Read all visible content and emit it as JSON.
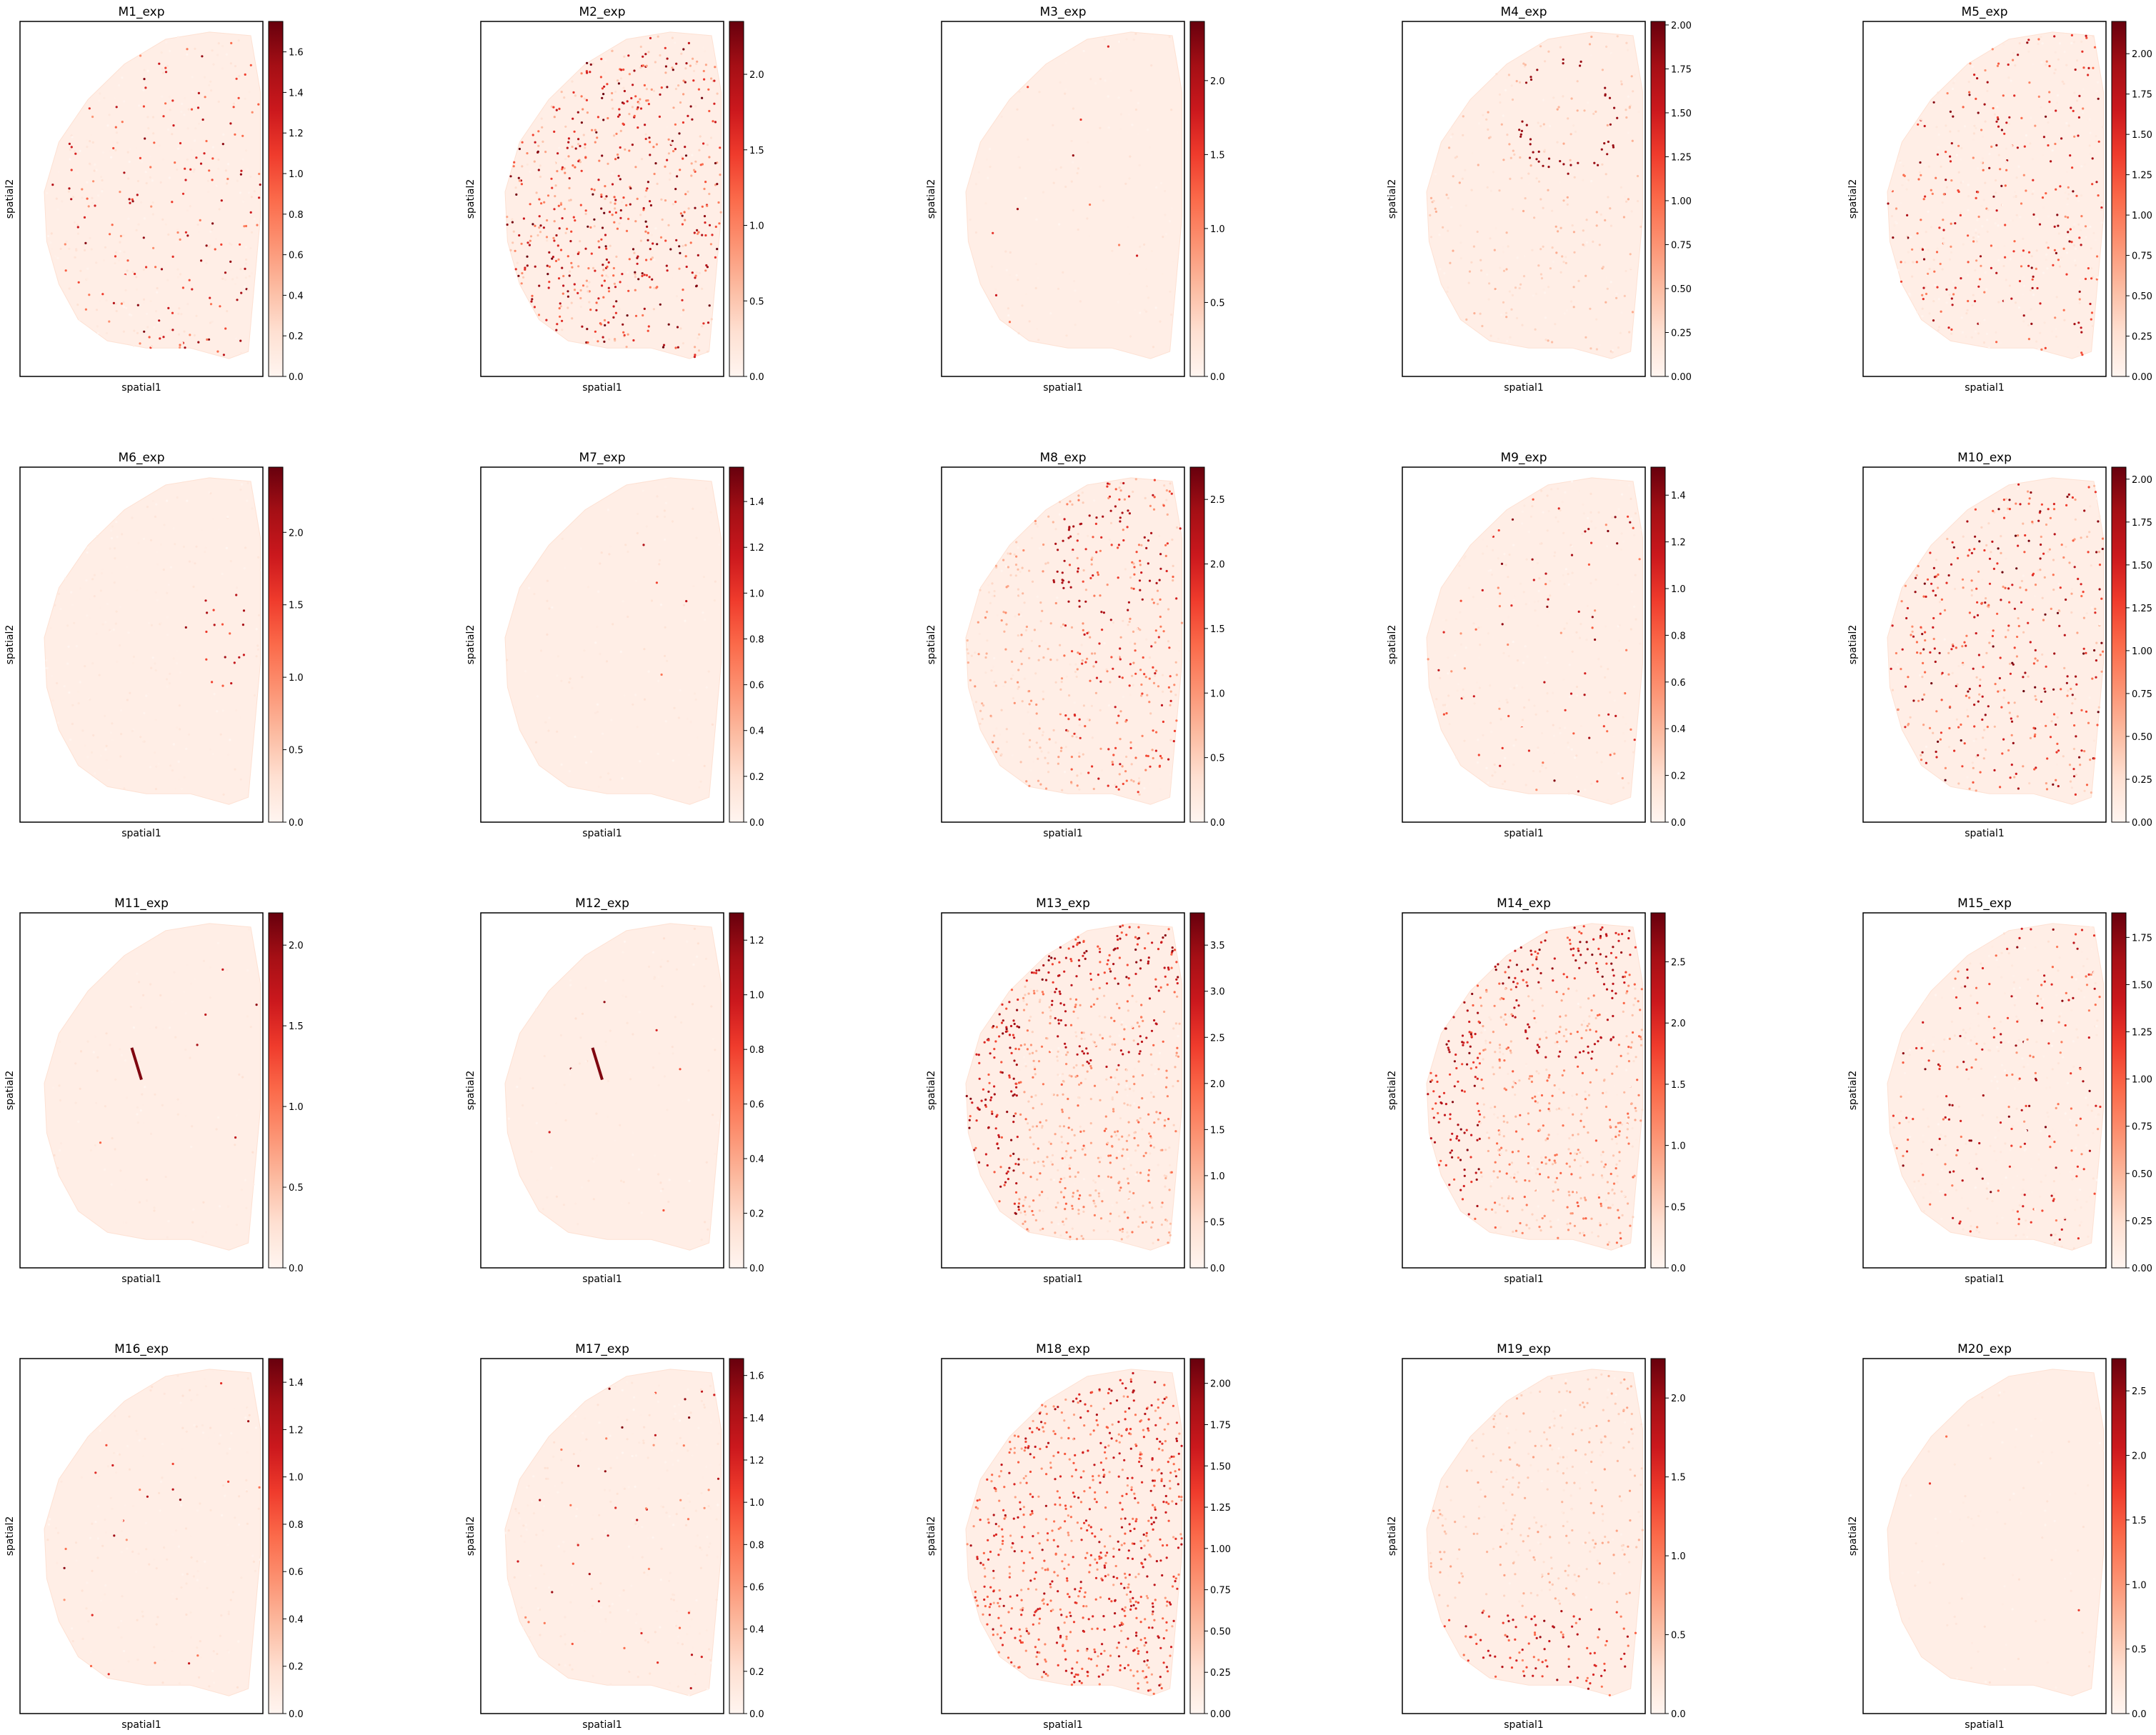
{
  "figure": {
    "xlabel": "spatial1",
    "ylabel": "spatial2",
    "colormap": [
      "#fff5f0",
      "#fee0d2",
      "#fcbba1",
      "#fc9272",
      "#fb6a4a",
      "#ef3b2c",
      "#cb181d",
      "#a50f15",
      "#67000d"
    ],
    "frame_color": "#000000"
  },
  "chart_data": [
    {
      "type": "scatter",
      "title": "M1_exp",
      "xlabel": "spatial1",
      "ylabel": "spatial2",
      "colorbar": {
        "min": 0.0,
        "max": 1.75,
        "ticks": [
          0.0,
          0.2,
          0.4,
          0.6,
          0.8,
          1.0,
          1.2,
          1.4,
          1.6
        ]
      },
      "pattern": "sparse-dots",
      "density": 0.55
    },
    {
      "type": "scatter",
      "title": "M2_exp",
      "xlabel": "spatial1",
      "ylabel": "spatial2",
      "colorbar": {
        "min": 0.0,
        "max": 2.35,
        "ticks": [
          0.0,
          0.5,
          1.0,
          1.5,
          2.0
        ]
      },
      "pattern": "dense-dots",
      "density": 0.9
    },
    {
      "type": "scatter",
      "title": "M3_exp",
      "xlabel": "spatial1",
      "ylabel": "spatial2",
      "colorbar": {
        "min": 0.0,
        "max": 2.4,
        "ticks": [
          0.0,
          0.5,
          1.0,
          1.5,
          2.0
        ]
      },
      "pattern": "faint-edge",
      "density": 0.1
    },
    {
      "type": "scatter",
      "title": "M4_exp",
      "xlabel": "spatial1",
      "ylabel": "spatial2",
      "colorbar": {
        "min": 0.0,
        "max": 2.02,
        "ticks": [
          0.0,
          0.25,
          0.5,
          0.75,
          1.0,
          1.25,
          1.5,
          1.75,
          2.0
        ]
      },
      "pattern": "hippocampus",
      "density": 0.35
    },
    {
      "type": "scatter",
      "title": "M5_exp",
      "xlabel": "spatial1",
      "ylabel": "spatial2",
      "colorbar": {
        "min": 0.0,
        "max": 2.2,
        "ticks": [
          0.0,
          0.25,
          0.5,
          0.75,
          1.0,
          1.25,
          1.5,
          1.75,
          2.0
        ]
      },
      "pattern": "sparse-dots",
      "density": 0.7
    },
    {
      "type": "scatter",
      "title": "M6_exp",
      "xlabel": "spatial1",
      "ylabel": "spatial2",
      "colorbar": {
        "min": 0.0,
        "max": 2.45,
        "ticks": [
          0.0,
          0.5,
          1.0,
          1.5,
          2.0
        ]
      },
      "pattern": "striatum-blob",
      "density": 0.2
    },
    {
      "type": "scatter",
      "title": "M7_exp",
      "xlabel": "spatial1",
      "ylabel": "spatial2",
      "colorbar": {
        "min": 0.0,
        "max": 1.55,
        "ticks": [
          0.0,
          0.2,
          0.4,
          0.6,
          0.8,
          1.0,
          1.2,
          1.4
        ]
      },
      "pattern": "faint",
      "density": 0.05
    },
    {
      "type": "scatter",
      "title": "M8_exp",
      "xlabel": "spatial1",
      "ylabel": "spatial2",
      "colorbar": {
        "min": 0.0,
        "max": 2.75,
        "ticks": [
          0.0,
          0.5,
          1.0,
          1.5,
          2.0,
          2.5
        ]
      },
      "pattern": "hippocampus-dense",
      "density": 0.7
    },
    {
      "type": "scatter",
      "title": "M9_exp",
      "xlabel": "spatial1",
      "ylabel": "spatial2",
      "colorbar": {
        "min": 0.0,
        "max": 1.52,
        "ticks": [
          0.0,
          0.2,
          0.4,
          0.6,
          0.8,
          1.0,
          1.2,
          1.4
        ]
      },
      "pattern": "sparse-dots",
      "density": 0.35
    },
    {
      "type": "scatter",
      "title": "M10_exp",
      "xlabel": "spatial1",
      "ylabel": "spatial2",
      "colorbar": {
        "min": 0.0,
        "max": 2.07,
        "ticks": [
          0.0,
          0.25,
          0.5,
          0.75,
          1.0,
          1.25,
          1.5,
          1.75,
          2.0
        ]
      },
      "pattern": "mixed",
      "density": 0.6
    },
    {
      "type": "scatter",
      "title": "M11_exp",
      "xlabel": "spatial1",
      "ylabel": "spatial2",
      "colorbar": {
        "min": 0.0,
        "max": 2.2,
        "ticks": [
          0.0,
          0.5,
          1.0,
          1.5,
          2.0
        ]
      },
      "pattern": "streak",
      "density": 0.05
    },
    {
      "type": "scatter",
      "title": "M12_exp",
      "xlabel": "spatial1",
      "ylabel": "spatial2",
      "colorbar": {
        "min": 0.0,
        "max": 1.3,
        "ticks": [
          0.0,
          0.2,
          0.4,
          0.6,
          0.8,
          1.0,
          1.2
        ]
      },
      "pattern": "streak",
      "density": 0.05
    },
    {
      "type": "scatter",
      "title": "M13_exp",
      "xlabel": "spatial1",
      "ylabel": "spatial2",
      "colorbar": {
        "min": 0.0,
        "max": 3.85,
        "ticks": [
          0.0,
          0.5,
          1.0,
          1.5,
          2.0,
          2.5,
          3.0,
          3.5
        ]
      },
      "pattern": "cortex-heavy",
      "density": 1.0
    },
    {
      "type": "scatter",
      "title": "M14_exp",
      "xlabel": "spatial1",
      "ylabel": "spatial2",
      "colorbar": {
        "min": 0.0,
        "max": 2.9,
        "ticks": [
          0.0,
          0.5,
          1.0,
          1.5,
          2.0,
          2.5
        ]
      },
      "pattern": "cortex-heavy",
      "density": 0.9
    },
    {
      "type": "scatter",
      "title": "M15_exp",
      "xlabel": "spatial1",
      "ylabel": "spatial2",
      "colorbar": {
        "min": 0.0,
        "max": 1.88,
        "ticks": [
          0.0,
          0.25,
          0.5,
          0.75,
          1.0,
          1.25,
          1.5,
          1.75
        ]
      },
      "pattern": "sparse-dots",
      "density": 0.6
    },
    {
      "type": "scatter",
      "title": "M16_exp",
      "xlabel": "spatial1",
      "ylabel": "spatial2",
      "colorbar": {
        "min": 0.0,
        "max": 1.5,
        "ticks": [
          0.0,
          0.2,
          0.4,
          0.6,
          0.8,
          1.0,
          1.2,
          1.4
        ]
      },
      "pattern": "vessels",
      "density": 0.2
    },
    {
      "type": "scatter",
      "title": "M17_exp",
      "xlabel": "spatial1",
      "ylabel": "spatial2",
      "colorbar": {
        "min": 0.0,
        "max": 1.68,
        "ticks": [
          0.0,
          0.2,
          0.4,
          0.6,
          0.8,
          1.0,
          1.2,
          1.4,
          1.6
        ]
      },
      "pattern": "vessels",
      "density": 0.3
    },
    {
      "type": "scatter",
      "title": "M18_exp",
      "xlabel": "spatial1",
      "ylabel": "spatial2",
      "colorbar": {
        "min": 0.0,
        "max": 2.15,
        "ticks": [
          0.0,
          0.25,
          0.5,
          0.75,
          1.0,
          1.25,
          1.5,
          1.75,
          2.0
        ]
      },
      "pattern": "dense-uniform",
      "density": 0.95
    },
    {
      "type": "scatter",
      "title": "M19_exp",
      "xlabel": "spatial1",
      "ylabel": "spatial2",
      "colorbar": {
        "min": 0.0,
        "max": 2.25,
        "ticks": [
          0.0,
          0.5,
          1.0,
          1.5,
          2.0
        ]
      },
      "pattern": "ventral",
      "density": 0.5
    },
    {
      "type": "scatter",
      "title": "M20_exp",
      "xlabel": "spatial1",
      "ylabel": "spatial2",
      "colorbar": {
        "min": 0.0,
        "max": 2.75,
        "ticks": [
          0.0,
          0.5,
          1.0,
          1.5,
          2.0,
          2.5
        ]
      },
      "pattern": "faint",
      "density": 0.05
    }
  ]
}
